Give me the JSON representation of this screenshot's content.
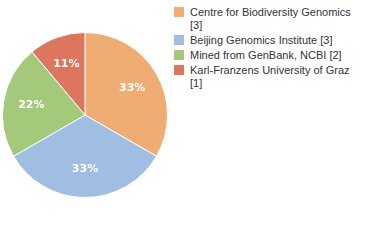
{
  "chart_data": {
    "type": "pie",
    "categories": [
      "Centre for Biodiversity Genomics [3]",
      "Beijing Genomics Institute [3]",
      "Mined from GenBank, NCBI [2]",
      "Karl-Franzens University of Graz [1]"
    ],
    "values": [
      33,
      33,
      22,
      11
    ],
    "value_labels": [
      "33%",
      "33%",
      "22%",
      "11%"
    ],
    "colors": [
      "#efad73",
      "#a0bde2",
      "#a4c97b",
      "#dc765f"
    ],
    "data_labels": true,
    "legend": "right"
  }
}
